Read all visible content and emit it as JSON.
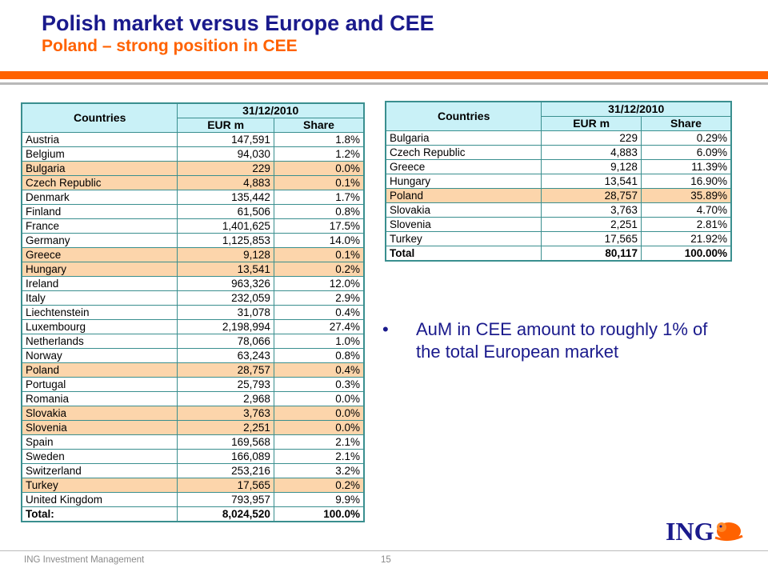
{
  "header": {
    "title": "Polish market versus Europe and CEE",
    "subtitle": "Poland – strong position in CEE"
  },
  "table_europe": {
    "col_countries": "Countries",
    "col_date": "31/12/2010",
    "col_eur": "EUR m",
    "col_share": "Share",
    "rows": [
      {
        "country": "Austria",
        "eur": "147,591",
        "share": "1.8%",
        "highlight": false
      },
      {
        "country": "Belgium",
        "eur": "94,030",
        "share": "1.2%",
        "highlight": false
      },
      {
        "country": "Bulgaria",
        "eur": "229",
        "share": "0.0%",
        "highlight": true
      },
      {
        "country": "Czech Republic",
        "eur": "4,883",
        "share": "0.1%",
        "highlight": true
      },
      {
        "country": "Denmark",
        "eur": "135,442",
        "share": "1.7%",
        "highlight": false
      },
      {
        "country": "Finland",
        "eur": "61,506",
        "share": "0.8%",
        "highlight": false
      },
      {
        "country": "France",
        "eur": "1,401,625",
        "share": "17.5%",
        "highlight": false
      },
      {
        "country": "Germany",
        "eur": "1,125,853",
        "share": "14.0%",
        "highlight": false
      },
      {
        "country": "Greece",
        "eur": "9,128",
        "share": "0.1%",
        "highlight": true
      },
      {
        "country": "Hungary",
        "eur": "13,541",
        "share": "0.2%",
        "highlight": true
      },
      {
        "country": "Ireland",
        "eur": "963,326",
        "share": "12.0%",
        "highlight": false
      },
      {
        "country": "Italy",
        "eur": "232,059",
        "share": "2.9%",
        "highlight": false
      },
      {
        "country": "Liechtenstein",
        "eur": "31,078",
        "share": "0.4%",
        "highlight": false
      },
      {
        "country": "Luxembourg",
        "eur": "2,198,994",
        "share": "27.4%",
        "highlight": false
      },
      {
        "country": "Netherlands",
        "eur": "78,066",
        "share": "1.0%",
        "highlight": false
      },
      {
        "country": "Norway",
        "eur": "63,243",
        "share": "0.8%",
        "highlight": false
      },
      {
        "country": "Poland",
        "eur": "28,757",
        "share": "0.4%",
        "highlight": true
      },
      {
        "country": "Portugal",
        "eur": "25,793",
        "share": "0.3%",
        "highlight": false
      },
      {
        "country": "Romania",
        "eur": "2,968",
        "share": "0.0%",
        "highlight": false
      },
      {
        "country": "Slovakia",
        "eur": "3,763",
        "share": "0.0%",
        "highlight": true
      },
      {
        "country": "Slovenia",
        "eur": "2,251",
        "share": "0.0%",
        "highlight": true
      },
      {
        "country": "Spain",
        "eur": "169,568",
        "share": "2.1%",
        "highlight": false
      },
      {
        "country": "Sweden",
        "eur": "166,089",
        "share": "2.1%",
        "highlight": false
      },
      {
        "country": "Switzerland",
        "eur": "253,216",
        "share": "3.2%",
        "highlight": false
      },
      {
        "country": "Turkey",
        "eur": "17,565",
        "share": "0.2%",
        "highlight": true
      },
      {
        "country": "United Kingdom",
        "eur": "793,957",
        "share": "9.9%",
        "highlight": false
      }
    ],
    "total": {
      "label": "Total:",
      "eur": "8,024,520",
      "share": "100.0%"
    }
  },
  "table_cee": {
    "col_countries": "Countries",
    "col_date": "31/12/2010",
    "col_eur": "EUR m",
    "col_share": "Share",
    "rows": [
      {
        "country": "Bulgaria",
        "eur": "229",
        "share": "0.29%",
        "highlight": false
      },
      {
        "country": "Czech Republic",
        "eur": "4,883",
        "share": "6.09%",
        "highlight": false
      },
      {
        "country": "Greece",
        "eur": "9,128",
        "share": "11.39%",
        "highlight": false
      },
      {
        "country": "Hungary",
        "eur": "13,541",
        "share": "16.90%",
        "highlight": false
      },
      {
        "country": "Poland",
        "eur": "28,757",
        "share": "35.89%",
        "highlight": true
      },
      {
        "country": "Slovakia",
        "eur": "3,763",
        "share": "4.70%",
        "highlight": false
      },
      {
        "country": "Slovenia",
        "eur": "2,251",
        "share": "2.81%",
        "highlight": false
      },
      {
        "country": "Turkey",
        "eur": "17,565",
        "share": "21.92%",
        "highlight": false
      }
    ],
    "total": {
      "label": "Total",
      "eur": "80,117",
      "share": "100.00%"
    }
  },
  "bullet": {
    "symbol": "•",
    "text": "AuM in CEE amount to roughly 1% of the total European market"
  },
  "logo": {
    "text": "ING",
    "icon": "lion-icon"
  },
  "footer": {
    "company": "ING Investment Management",
    "page": "15"
  },
  "colors": {
    "title": "#1a1a8c",
    "accent": "#ff6200",
    "header_fill": "#c9f1f7",
    "highlight_fill": "#fcd5ab",
    "border": "#3a8f8f"
  }
}
